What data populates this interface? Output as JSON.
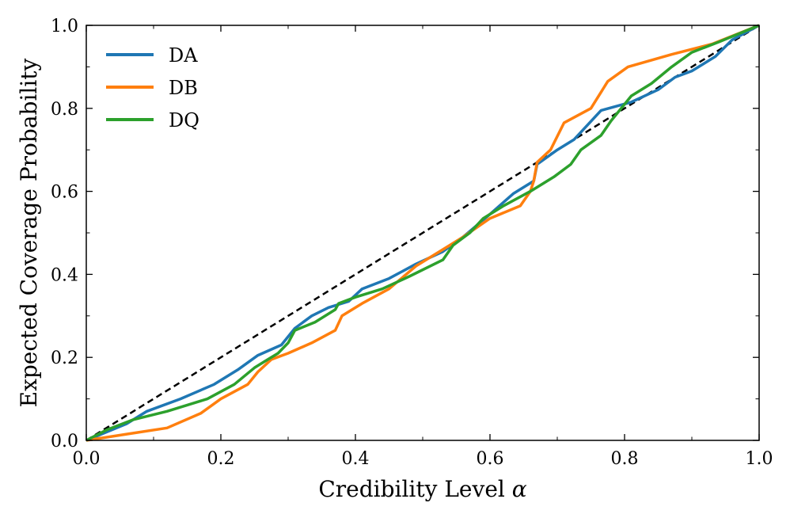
{
  "chart_data": {
    "type": "line",
    "xlabel": "Credibility Level",
    "xlabel_symbol": "α",
    "ylabel": "Expected Coverage Probability",
    "xlim": [
      0,
      1
    ],
    "ylim": [
      0,
      1
    ],
    "x_ticks": [
      "0.0",
      "0.2",
      "0.4",
      "0.6",
      "0.8",
      "1.0"
    ],
    "y_ticks": [
      "0.0",
      "0.2",
      "0.4",
      "0.6",
      "0.8",
      "1.0"
    ],
    "grid": false,
    "legend_position": "top-left",
    "reference_line": {
      "style": "dashed",
      "color": "#000000",
      "points": [
        [
          0,
          0
        ],
        [
          1,
          1
        ]
      ]
    },
    "series": [
      {
        "name": "DA",
        "color": "#1f77b4",
        "points": [
          [
            0,
            0
          ],
          [
            0.03,
            0.02
          ],
          [
            0.06,
            0.04
          ],
          [
            0.09,
            0.07
          ],
          [
            0.14,
            0.1
          ],
          [
            0.19,
            0.135
          ],
          [
            0.225,
            0.17
          ],
          [
            0.255,
            0.205
          ],
          [
            0.29,
            0.23
          ],
          [
            0.31,
            0.27
          ],
          [
            0.335,
            0.3
          ],
          [
            0.36,
            0.32
          ],
          [
            0.39,
            0.335
          ],
          [
            0.41,
            0.365
          ],
          [
            0.45,
            0.39
          ],
          [
            0.49,
            0.425
          ],
          [
            0.53,
            0.455
          ],
          [
            0.56,
            0.49
          ],
          [
            0.6,
            0.545
          ],
          [
            0.635,
            0.595
          ],
          [
            0.665,
            0.625
          ],
          [
            0.67,
            0.665
          ],
          [
            0.7,
            0.7
          ],
          [
            0.725,
            0.725
          ],
          [
            0.765,
            0.795
          ],
          [
            0.81,
            0.815
          ],
          [
            0.85,
            0.845
          ],
          [
            0.875,
            0.875
          ],
          [
            0.9,
            0.89
          ],
          [
            0.935,
            0.925
          ],
          [
            0.96,
            0.965
          ],
          [
            1,
            1
          ]
        ]
      },
      {
        "name": "DB",
        "color": "#ff7f0e",
        "points": [
          [
            0,
            0
          ],
          [
            0.06,
            0.015
          ],
          [
            0.12,
            0.03
          ],
          [
            0.17,
            0.065
          ],
          [
            0.2,
            0.1
          ],
          [
            0.24,
            0.135
          ],
          [
            0.255,
            0.165
          ],
          [
            0.275,
            0.195
          ],
          [
            0.3,
            0.21
          ],
          [
            0.335,
            0.235
          ],
          [
            0.37,
            0.265
          ],
          [
            0.38,
            0.3
          ],
          [
            0.41,
            0.33
          ],
          [
            0.45,
            0.365
          ],
          [
            0.49,
            0.42
          ],
          [
            0.53,
            0.46
          ],
          [
            0.56,
            0.49
          ],
          [
            0.6,
            0.535
          ],
          [
            0.645,
            0.565
          ],
          [
            0.66,
            0.6
          ],
          [
            0.665,
            0.625
          ],
          [
            0.67,
            0.67
          ],
          [
            0.69,
            0.7
          ],
          [
            0.71,
            0.765
          ],
          [
            0.75,
            0.8
          ],
          [
            0.775,
            0.865
          ],
          [
            0.805,
            0.9
          ],
          [
            0.87,
            0.93
          ],
          [
            0.93,
            0.955
          ],
          [
            1,
            1
          ]
        ]
      },
      {
        "name": "DQ",
        "color": "#2ca02c",
        "points": [
          [
            0,
            0
          ],
          [
            0.03,
            0.025
          ],
          [
            0.07,
            0.05
          ],
          [
            0.12,
            0.07
          ],
          [
            0.18,
            0.1
          ],
          [
            0.22,
            0.135
          ],
          [
            0.25,
            0.175
          ],
          [
            0.27,
            0.195
          ],
          [
            0.285,
            0.21
          ],
          [
            0.3,
            0.235
          ],
          [
            0.31,
            0.265
          ],
          [
            0.34,
            0.285
          ],
          [
            0.37,
            0.315
          ],
          [
            0.375,
            0.33
          ],
          [
            0.4,
            0.345
          ],
          [
            0.44,
            0.365
          ],
          [
            0.48,
            0.395
          ],
          [
            0.53,
            0.435
          ],
          [
            0.545,
            0.47
          ],
          [
            0.57,
            0.5
          ],
          [
            0.59,
            0.535
          ],
          [
            0.62,
            0.565
          ],
          [
            0.66,
            0.6
          ],
          [
            0.695,
            0.635
          ],
          [
            0.72,
            0.665
          ],
          [
            0.735,
            0.7
          ],
          [
            0.765,
            0.735
          ],
          [
            0.78,
            0.77
          ],
          [
            0.81,
            0.83
          ],
          [
            0.84,
            0.86
          ],
          [
            0.87,
            0.9
          ],
          [
            0.9,
            0.935
          ],
          [
            0.94,
            0.96
          ],
          [
            1,
            1
          ]
        ]
      }
    ]
  }
}
